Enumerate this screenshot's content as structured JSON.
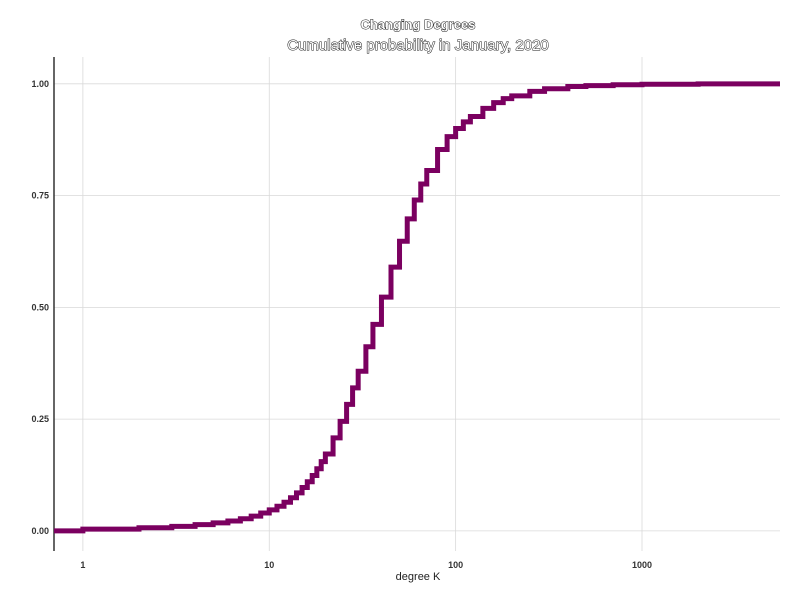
{
  "chart_data": {
    "type": "line",
    "title": "Changing Degrees",
    "subtitle": "Cumulative probability in January, 2020",
    "xlabel": "degree K",
    "ylabel": "",
    "x_scale": "log",
    "xlim": [
      0.7,
      5500
    ],
    "ylim": [
      -0.045,
      1.06
    ],
    "x_ticks": [
      1,
      10,
      100,
      1000
    ],
    "x_tick_labels": [
      "1",
      "10",
      "100",
      "1000"
    ],
    "y_ticks": [
      0,
      0.25,
      0.5,
      0.75,
      1
    ],
    "y_tick_labels": [
      "0.00",
      "0.25",
      "0.50",
      "0.75",
      "1.00"
    ],
    "grid": true,
    "legend": "none",
    "series": [
      {
        "color": "#7b0060",
        "step": true,
        "x": [
          0.7,
          1,
          2,
          3,
          4,
          5,
          6,
          7,
          8,
          9,
          10,
          11,
          12,
          13,
          14,
          15,
          16,
          17,
          18,
          19,
          20,
          22,
          24,
          26,
          28,
          30,
          33,
          36,
          40,
          45,
          50,
          55,
          60,
          65,
          70,
          80,
          90,
          100,
          110,
          120,
          140,
          160,
          180,
          200,
          250,
          300,
          400,
          500,
          700,
          1000,
          2000,
          5500
        ],
        "y": [
          0.0,
          0.004,
          0.007,
          0.01,
          0.014,
          0.018,
          0.022,
          0.027,
          0.033,
          0.04,
          0.047,
          0.055,
          0.064,
          0.074,
          0.085,
          0.097,
          0.11,
          0.124,
          0.139,
          0.155,
          0.172,
          0.208,
          0.245,
          0.283,
          0.32,
          0.357,
          0.412,
          0.462,
          0.523,
          0.59,
          0.648,
          0.698,
          0.74,
          0.776,
          0.806,
          0.853,
          0.882,
          0.9,
          0.915,
          0.927,
          0.945,
          0.958,
          0.967,
          0.973,
          0.983,
          0.989,
          0.994,
          0.996,
          0.998,
          0.999,
          1.0,
          1.0
        ]
      }
    ]
  }
}
